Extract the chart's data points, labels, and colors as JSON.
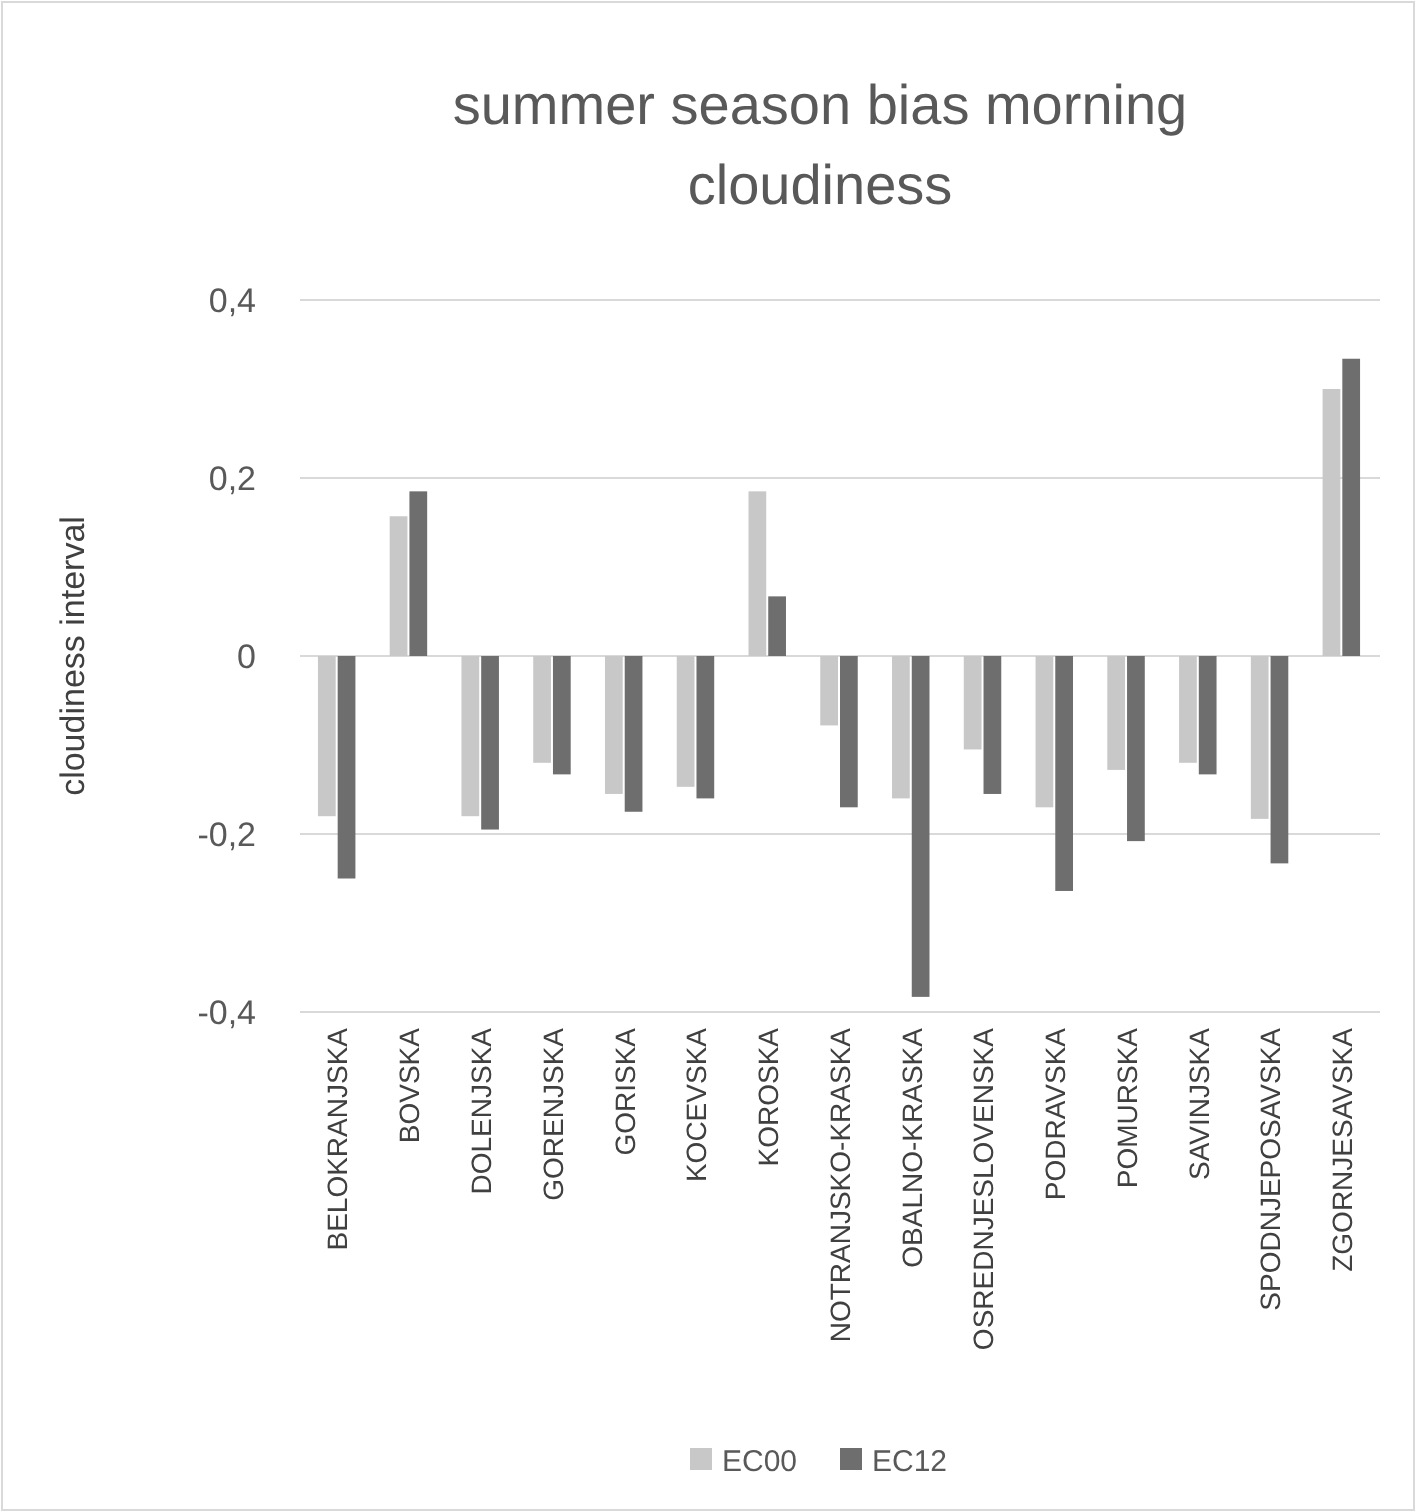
{
  "chart_data": {
    "type": "bar",
    "title": "summer season bias morning\ncloudiness",
    "ylabel": "cloudiness interval",
    "categories": [
      "BELOKRANJSKA",
      "BOVSKA",
      "DOLENJSKA",
      "GORENJSKA",
      "GORISKA",
      "KOCEVSKA",
      "KOROSKA",
      "NOTRANJSKO-KRASKA",
      "OBALNO-KRASKA",
      "OSREDNJESLOVENSKA",
      "PODRAVSKA",
      "POMURSKA",
      "SAVINJSKA",
      "SPODNJEPOSAVSKA",
      "ZGORNJESAVSKA"
    ],
    "series": [
      {
        "name": "EC00",
        "color": "#c8c8c8",
        "values": [
          -0.18,
          0.157,
          -0.18,
          -0.12,
          -0.155,
          -0.147,
          0.185,
          -0.078,
          -0.16,
          -0.105,
          -0.17,
          -0.128,
          -0.12,
          -0.183,
          0.3
        ]
      },
      {
        "name": "EC12",
        "color": "#6e6e6e",
        "values": [
          -0.25,
          0.185,
          -0.195,
          -0.133,
          -0.175,
          -0.16,
          0.067,
          -0.17,
          -0.383,
          -0.155,
          -0.264,
          -0.208,
          -0.133,
          -0.233,
          0.334
        ]
      }
    ],
    "ylim": [
      -0.4,
      0.4
    ],
    "yticks": [
      {
        "value": -0.4,
        "label": "-0,4"
      },
      {
        "value": -0.2,
        "label": "-0,2"
      },
      {
        "value": 0,
        "label": "0"
      },
      {
        "value": 0.2,
        "label": "0,2"
      },
      {
        "value": 0.4,
        "label": "0,4"
      }
    ],
    "grid": "y",
    "legend": "bottom"
  }
}
